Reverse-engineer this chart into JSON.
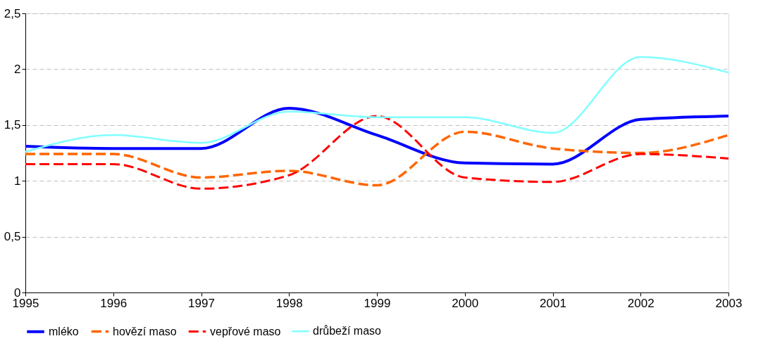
{
  "chart_data": {
    "type": "line",
    "x": [
      1995,
      1996,
      1997,
      1998,
      1999,
      2000,
      2001,
      2002,
      2003
    ],
    "series": [
      {
        "name": "mléko",
        "color": "#0000ff",
        "line_style": "solid",
        "values": [
          1.31,
          1.29,
          1.29,
          1.65,
          1.41,
          1.16,
          1.15,
          1.55,
          1.58
        ]
      },
      {
        "name": "hovězí maso",
        "color": "#ff6600",
        "line_style": "dashed",
        "values": [
          1.24,
          1.24,
          1.03,
          1.09,
          0.96,
          1.44,
          1.29,
          1.25,
          1.41
        ]
      },
      {
        "name": "vepřové maso",
        "color": "#ff0000",
        "line_style": "dashed",
        "values": [
          1.15,
          1.15,
          0.93,
          1.05,
          1.58,
          1.03,
          0.99,
          1.24,
          1.2
        ]
      },
      {
        "name": "drůbeží maso",
        "color": "#80ffff",
        "line_style": "solid",
        "values": [
          1.26,
          1.41,
          1.34,
          1.62,
          1.57,
          1.57,
          1.43,
          2.11,
          1.97
        ]
      }
    ],
    "xlim": [
      1995,
      2003
    ],
    "xticks": [
      1995,
      1996,
      1997,
      1998,
      1999,
      2000,
      2001,
      2002,
      2003
    ],
    "ylim": [
      0,
      2.5
    ],
    "yticks": [
      0,
      {
        "value": 0.5,
        "label": "0,5"
      },
      1,
      {
        "value": 1.5,
        "label": "1,5"
      },
      2,
      {
        "value": 2.5,
        "label": "2,5"
      }
    ],
    "grid": "y",
    "legend": "bottom",
    "marker": "none"
  }
}
